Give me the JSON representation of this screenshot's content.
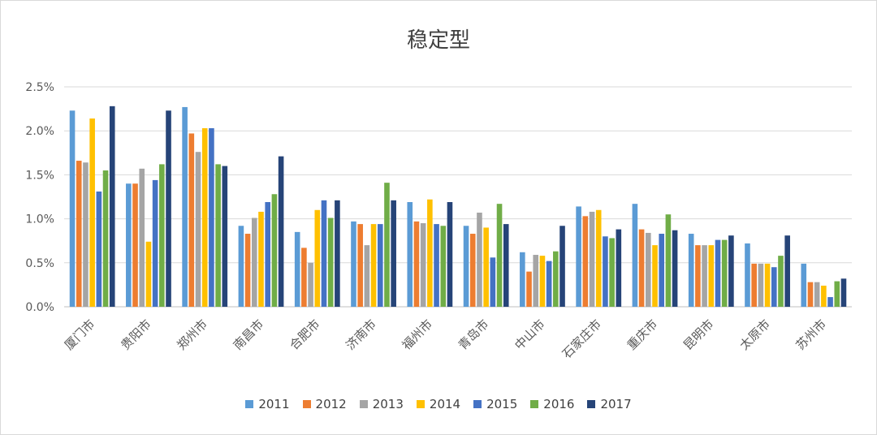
{
  "chart_data": {
    "type": "bar",
    "title": "稳定型",
    "xlabel": "",
    "ylabel": "",
    "ylim": [
      0,
      2.5
    ],
    "yticks": [
      "0.0%",
      "0.5%",
      "1.0%",
      "1.5%",
      "2.0%",
      "2.5%"
    ],
    "grid": true,
    "legend_position": "bottom",
    "categories": [
      "厦门市",
      "贵阳市",
      "郑州市",
      "南昌市",
      "合肥市",
      "济南市",
      "福州市",
      "青岛市",
      "中山市",
      "石家庄市",
      "重庆市",
      "昆明市",
      "太原市",
      "苏州市"
    ],
    "series": [
      {
        "name": "2011",
        "color": "#5B9BD5",
        "values": [
          2.23,
          1.4,
          2.27,
          0.92,
          0.85,
          0.97,
          1.19,
          0.92,
          0.62,
          1.14,
          1.17,
          0.83,
          0.72,
          0.49
        ]
      },
      {
        "name": "2012",
        "color": "#ED7D31",
        "values": [
          1.66,
          1.4,
          1.97,
          0.83,
          0.67,
          0.94,
          0.97,
          0.83,
          0.4,
          1.03,
          0.88,
          0.7,
          0.49,
          0.28
        ]
      },
      {
        "name": "2013",
        "color": "#A5A5A5",
        "values": [
          1.64,
          1.57,
          1.76,
          1.01,
          0.5,
          0.7,
          0.95,
          1.07,
          0.59,
          1.08,
          0.84,
          0.7,
          0.49,
          0.28
        ]
      },
      {
        "name": "2014",
        "color": "#FFC000",
        "values": [
          2.14,
          0.74,
          2.03,
          1.08,
          1.1,
          0.94,
          1.22,
          0.9,
          0.58,
          1.1,
          0.7,
          0.7,
          0.49,
          0.24
        ]
      },
      {
        "name": "2015",
        "color": "#4472C4",
        "values": [
          1.31,
          1.44,
          2.03,
          1.19,
          1.21,
          0.94,
          0.94,
          0.56,
          0.52,
          0.8,
          0.83,
          0.76,
          0.45,
          0.11
        ]
      },
      {
        "name": "2016",
        "color": "#70AD47",
        "values": [
          1.55,
          1.62,
          1.62,
          1.28,
          1.01,
          1.41,
          0.92,
          1.17,
          0.63,
          0.78,
          1.05,
          0.76,
          0.58,
          0.29
        ]
      },
      {
        "name": "2017",
        "color": "#264478",
        "values": [
          2.28,
          2.23,
          1.6,
          1.71,
          1.21,
          1.21,
          1.19,
          0.94,
          0.92,
          0.88,
          0.87,
          0.81,
          0.81,
          0.32
        ]
      }
    ]
  }
}
